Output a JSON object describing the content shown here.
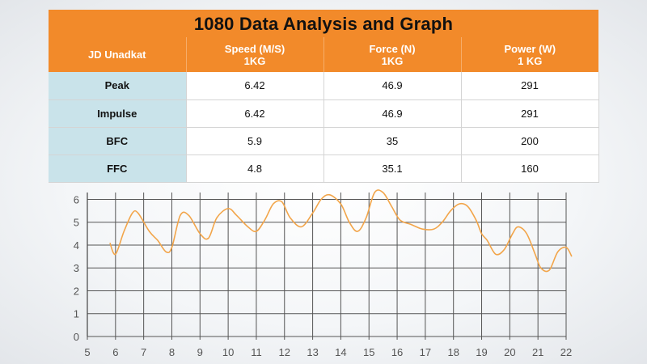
{
  "title": "1080 Data Analysis and Graph",
  "table": {
    "headers": [
      {
        "line1": "JD Unadkat",
        "line2": ""
      },
      {
        "line1": "Speed (M/S)",
        "line2": "1KG"
      },
      {
        "line1": "Force (N)",
        "line2": "1KG"
      },
      {
        "line1": "Power (W)",
        "line2": "1 KG"
      }
    ],
    "rows": [
      {
        "label": "Peak",
        "speed": "6.42",
        "force": "46.9",
        "power": "291"
      },
      {
        "label": "Impulse",
        "speed": "6.42",
        "force": "46.9",
        "power": "291"
      },
      {
        "label": "BFC",
        "speed": "5.9",
        "force": "35",
        "power": "200"
      },
      {
        "label": "FFC",
        "speed": "4.8",
        "force": "35.1",
        "power": "160"
      }
    ]
  },
  "chart_data": {
    "type": "line",
    "title": "",
    "xlabel": "",
    "ylabel": "",
    "xlim": [
      5,
      22
    ],
    "ylim": [
      0,
      6.3
    ],
    "xticks": [
      5,
      6,
      7,
      8,
      9,
      10,
      11,
      12,
      13,
      14,
      15,
      16,
      17,
      18,
      19,
      20,
      21,
      22
    ],
    "yticks": [
      0,
      1,
      2,
      3,
      4,
      5,
      6
    ],
    "grid": true,
    "legend": "none",
    "line_color": "#f2a54a",
    "series": [
      {
        "x": [
          5.8,
          6.0,
          6.3,
          6.6,
          6.8,
          7.2,
          7.5,
          7.8,
          8.0,
          8.3,
          8.6,
          9.0,
          9.3,
          9.6,
          10.0,
          10.3,
          10.7,
          11.0,
          11.3,
          11.6,
          11.9,
          12.2,
          12.6,
          13.0,
          13.3,
          13.6,
          14.0,
          14.3,
          14.6,
          14.9,
          15.2,
          15.5,
          15.8,
          16.1,
          16.5,
          16.9,
          17.3,
          17.6,
          17.9,
          18.2,
          18.5,
          18.8,
          19.0,
          19.2,
          19.5,
          19.8,
          20.1,
          20.3,
          20.6,
          20.9,
          21.1,
          21.4,
          21.7,
          22.0,
          22.2
        ],
        "y": [
          4.1,
          3.6,
          4.6,
          5.4,
          5.4,
          4.6,
          4.2,
          3.7,
          3.9,
          5.3,
          5.3,
          4.5,
          4.3,
          5.2,
          5.6,
          5.3,
          4.8,
          4.6,
          5.1,
          5.8,
          5.9,
          5.2,
          4.8,
          5.4,
          6.0,
          6.2,
          5.8,
          5.0,
          4.6,
          5.2,
          6.3,
          6.3,
          5.7,
          5.1,
          4.9,
          4.7,
          4.7,
          5.0,
          5.5,
          5.8,
          5.7,
          5.1,
          4.5,
          4.2,
          3.6,
          3.8,
          4.5,
          4.8,
          4.5,
          3.6,
          3.0,
          2.9,
          3.7,
          3.9,
          3.5
        ]
      }
    ]
  }
}
